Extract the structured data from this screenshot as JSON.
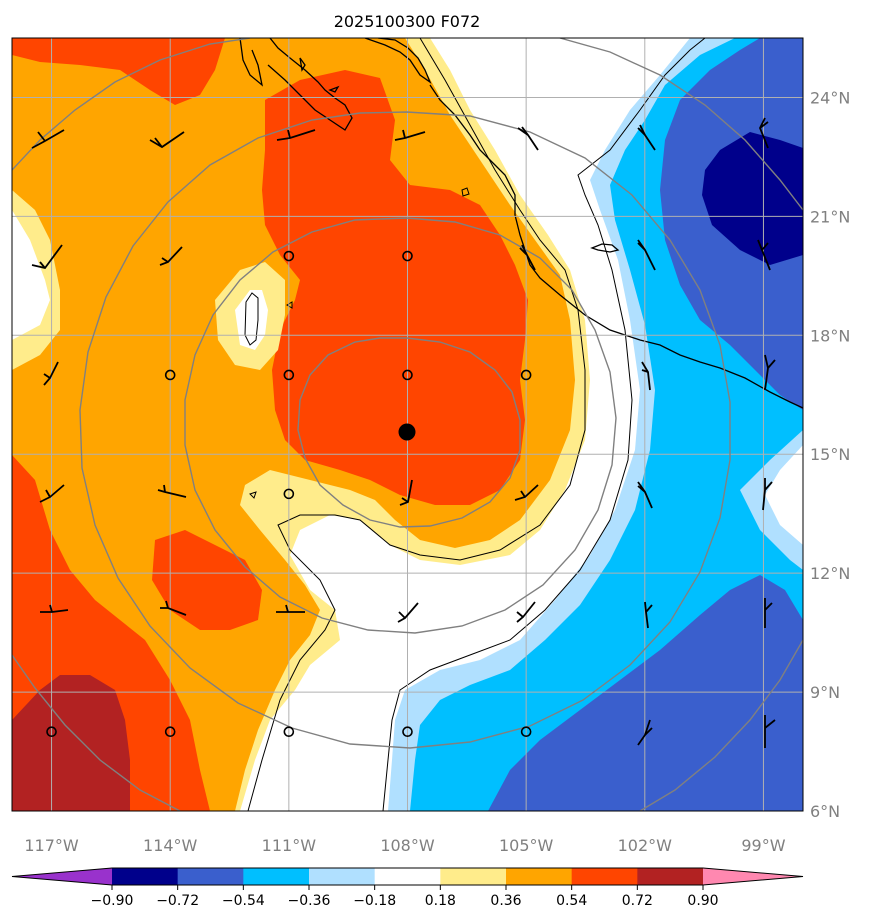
{
  "title": "2025100300 F072",
  "map": {
    "lon_range": [
      -118,
      -98
    ],
    "lat_range": [
      6,
      25.5
    ],
    "lon_ticks": [
      {
        "value": -117,
        "label": "117°W"
      },
      {
        "value": -114,
        "label": "114°W"
      },
      {
        "value": -111,
        "label": "111°W"
      },
      {
        "value": -108,
        "label": "108°W"
      },
      {
        "value": -105,
        "label": "105°W"
      },
      {
        "value": -102,
        "label": "102°W"
      },
      {
        "value": -99,
        "label": "99°W"
      }
    ],
    "lat_ticks": [
      {
        "value": 6,
        "label": "6°N"
      },
      {
        "value": 9,
        "label": "9°N"
      },
      {
        "value": 12,
        "label": "12°N"
      },
      {
        "value": 15,
        "label": "15°N"
      },
      {
        "value": 18,
        "label": "18°N"
      },
      {
        "value": 21,
        "label": "21°N"
      },
      {
        "value": 24,
        "label": "24°N"
      }
    ],
    "gridlines": true,
    "center": {
      "lon": -108,
      "lat": 15.6
    },
    "range_rings_deg": [
      2.3,
      5.3,
      8.0,
      11.0
    ]
  },
  "colorbar": {
    "ticks": [
      "−0.90",
      "−0.72",
      "−0.54",
      "−0.36",
      "−0.18",
      "0.18",
      "0.36",
      "0.54",
      "0.72",
      "0.90"
    ],
    "colors": [
      "#9932cc",
      "#00008b",
      "#3a5fcd",
      "#00bfff",
      "#b0e0ff",
      "#ffffff",
      "#ffec8b",
      "#ffa500",
      "#ff4500",
      "#b22222",
      "#ff88b0"
    ],
    "extend": "both"
  },
  "colors": {
    "ring": "#808080",
    "grid": "#b0b0b0",
    "coast": "#000000",
    "contour": "#000000"
  }
}
